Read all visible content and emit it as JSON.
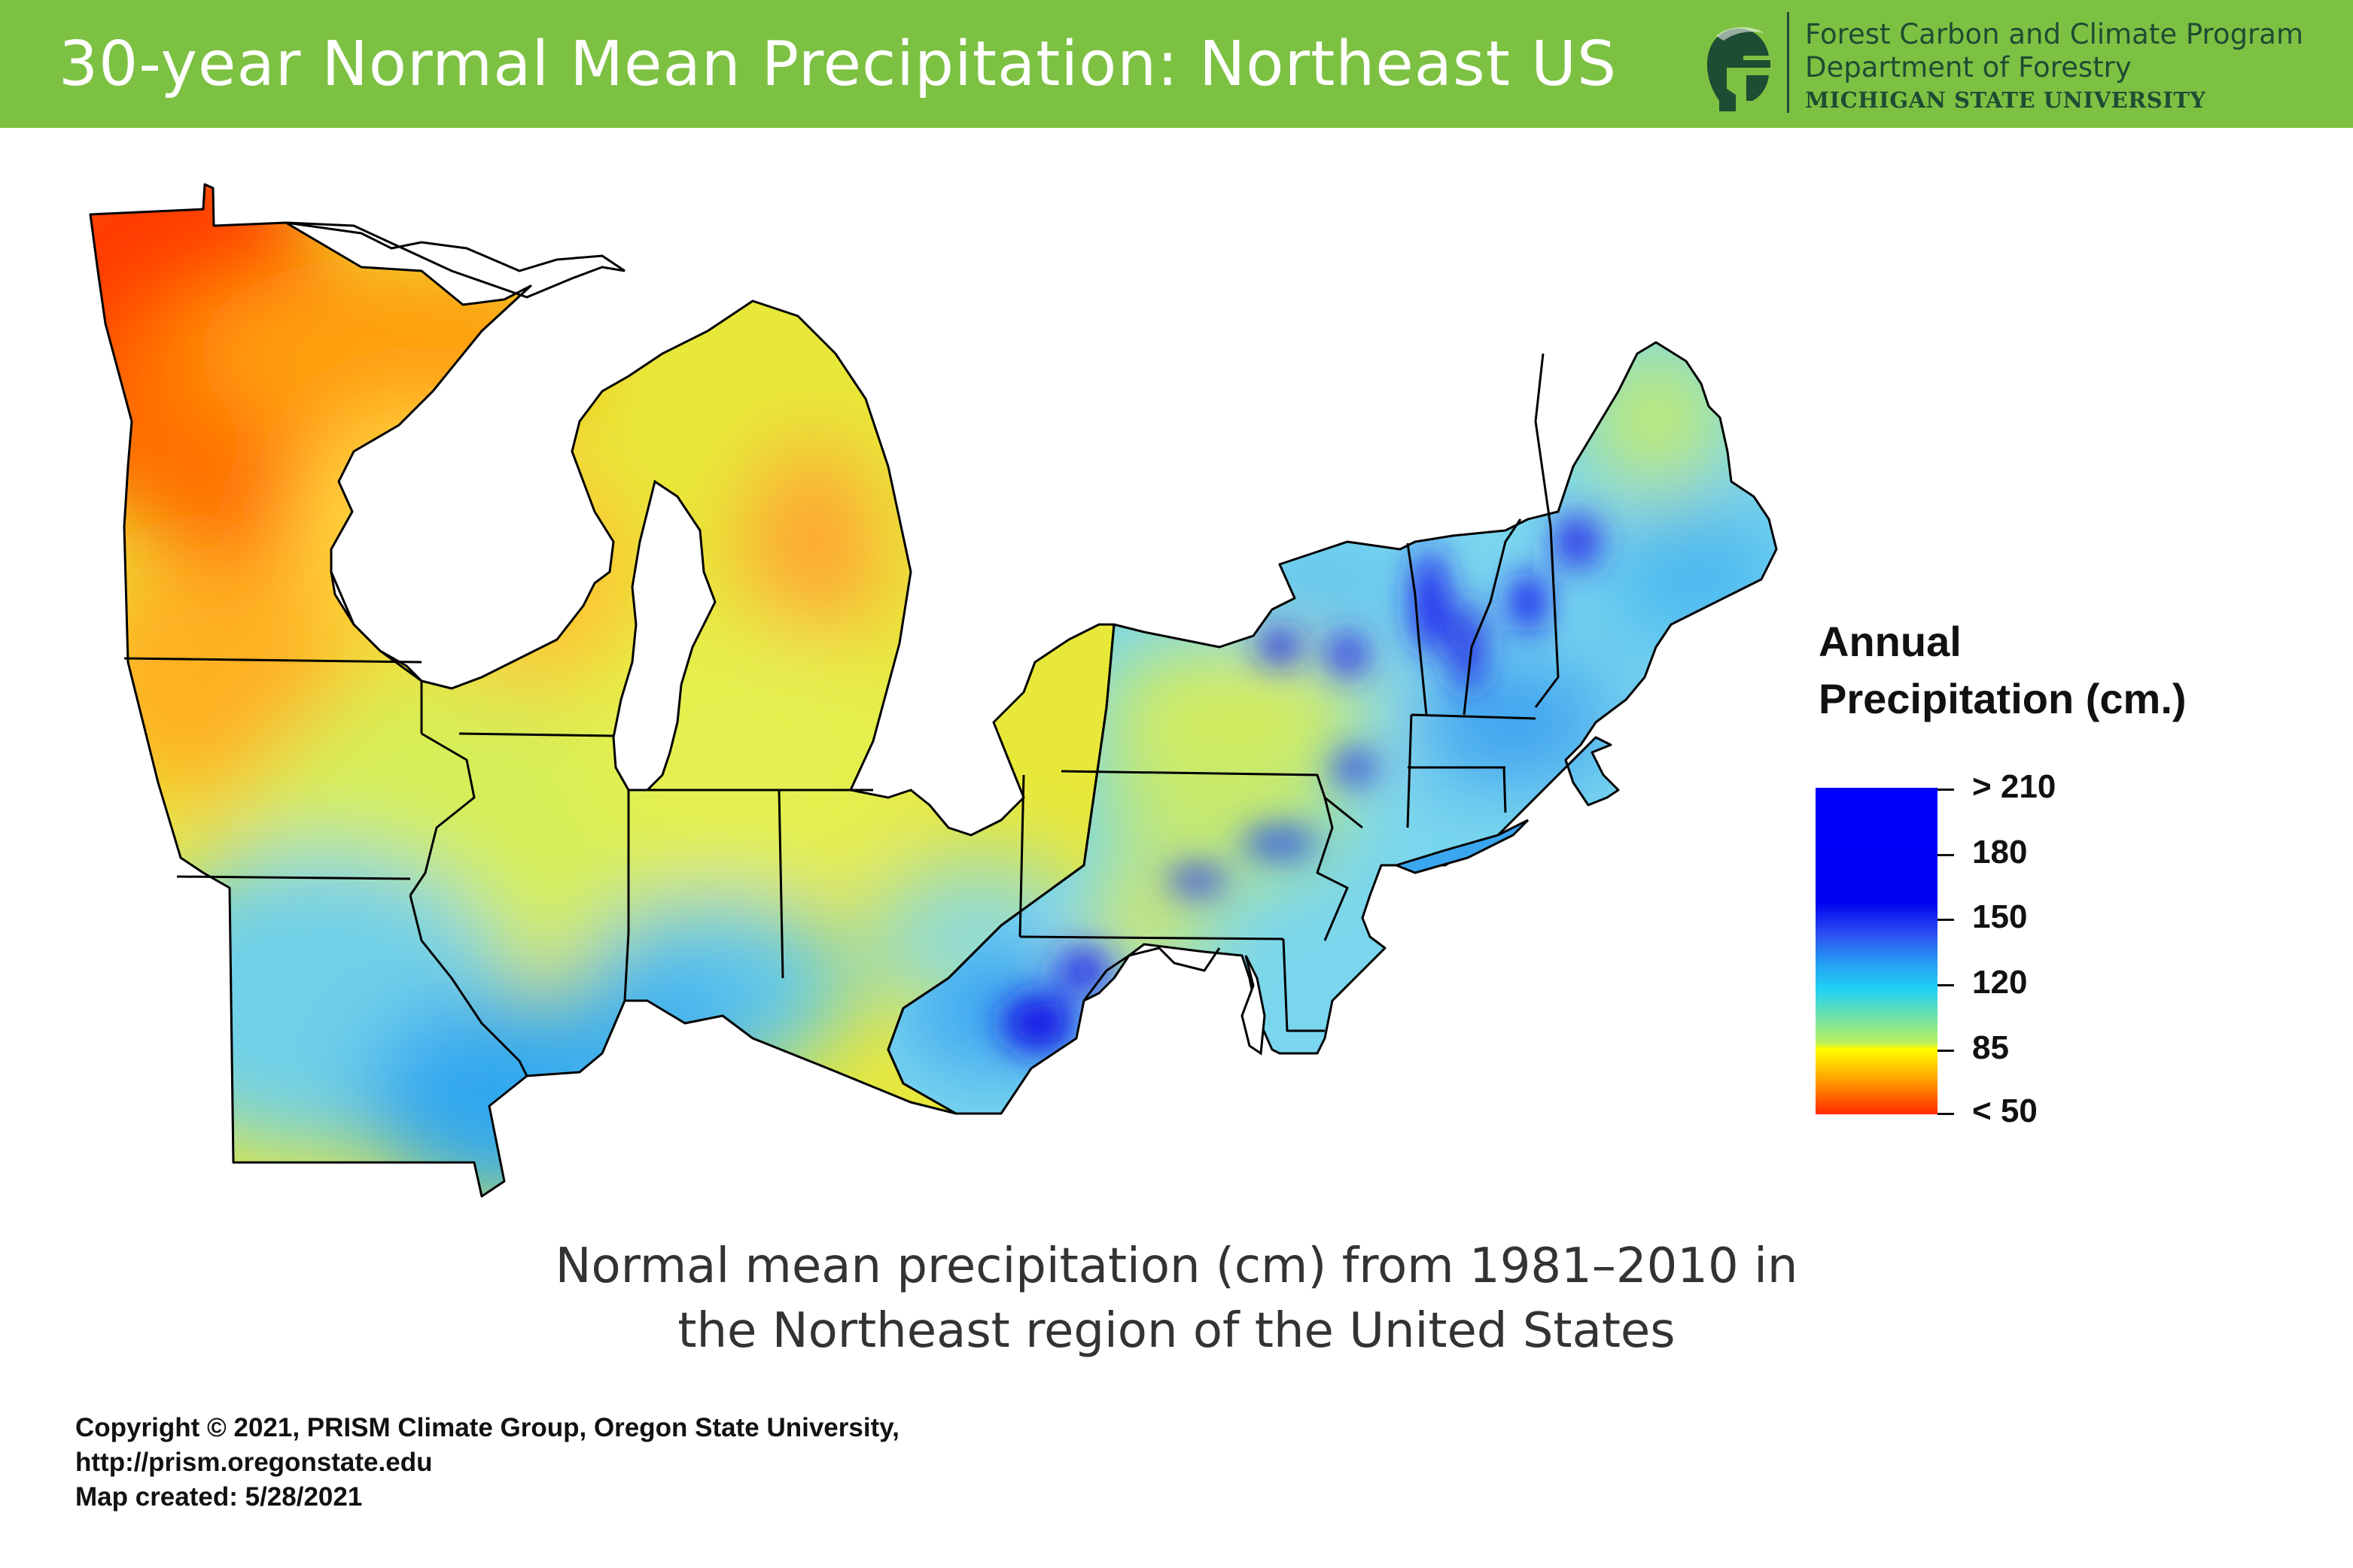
{
  "header": {
    "title": "30-year Normal Mean Precipitation: Northeast US",
    "background_color": "#7dc143",
    "org": {
      "line1": "Forest Carbon and Climate Program",
      "line2": "Department of Forestry",
      "line3": "MICHIGAN STATE UNIVERSITY",
      "logo_icon": "spartan-helmet-icon",
      "color": "#1d4d33"
    }
  },
  "map": {
    "region": "Northeast US",
    "states": [
      "MN",
      "WI",
      "MI",
      "IA",
      "IL",
      "IN",
      "OH",
      "MO",
      "PA",
      "WV",
      "MD",
      "DE",
      "NJ",
      "NY",
      "CT",
      "RI",
      "MA",
      "VT",
      "NH",
      "ME"
    ],
    "wettest_color": "#0000ff",
    "driest_color": "#ff2800"
  },
  "legend": {
    "title_line1": "Annual",
    "title_line2": "Precipitation (cm.)",
    "ticks": [
      "> 210",
      "180",
      "150",
      "120",
      "85",
      "< 50"
    ]
  },
  "caption": {
    "line1": "Normal mean precipitation (cm) from 1981–2010 in",
    "line2": "the Northeast region of the United States"
  },
  "credits": {
    "line1": "Copyright © 2021, PRISM Climate Group, Oregon State University,",
    "line2": "http://prism.oregonstate.edu",
    "line3": "Map created: 5/28/2021"
  }
}
